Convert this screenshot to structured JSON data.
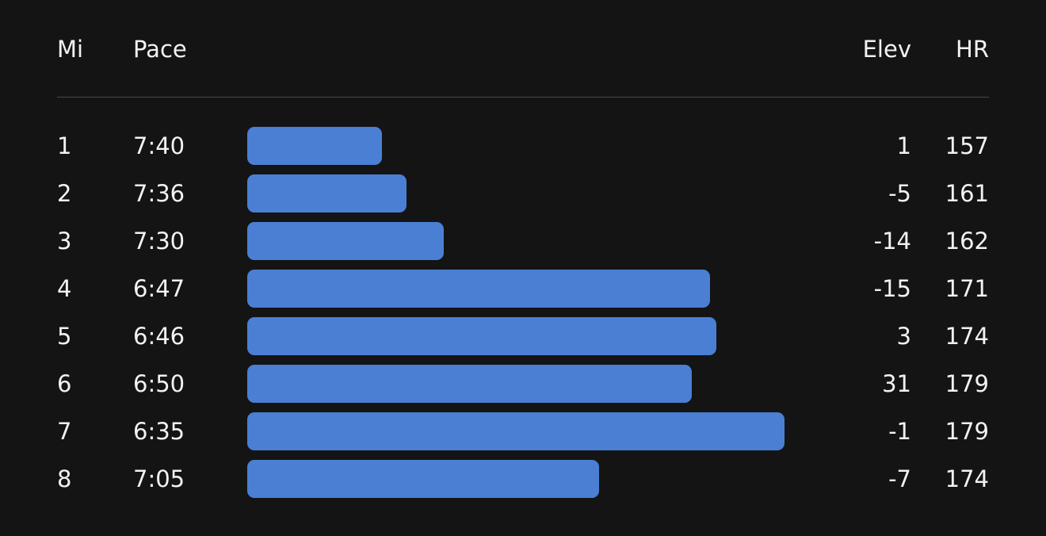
{
  "header": {
    "mi": "Mi",
    "pace": "Pace",
    "elev": "Elev",
    "hr": "HR"
  },
  "colors": {
    "background": "#141414",
    "bar": "#4a7fd4",
    "text": "#f2f2f2"
  },
  "splits": [
    {
      "mi": "1",
      "pace": "7:40",
      "elev": "1",
      "hr": "157"
    },
    {
      "mi": "2",
      "pace": "7:36",
      "elev": "-5",
      "hr": "161"
    },
    {
      "mi": "3",
      "pace": "7:30",
      "elev": "-14",
      "hr": "162"
    },
    {
      "mi": "4",
      "pace": "6:47",
      "elev": "-15",
      "hr": "171"
    },
    {
      "mi": "5",
      "pace": "6:46",
      "elev": "3",
      "hr": "174"
    },
    {
      "mi": "6",
      "pace": "6:50",
      "elev": "31",
      "hr": "179"
    },
    {
      "mi": "7",
      "pace": "6:35",
      "elev": "-1",
      "hr": "179"
    },
    {
      "mi": "8",
      "pace": "7:05",
      "elev": "-7",
      "hr": "174"
    }
  ]
}
